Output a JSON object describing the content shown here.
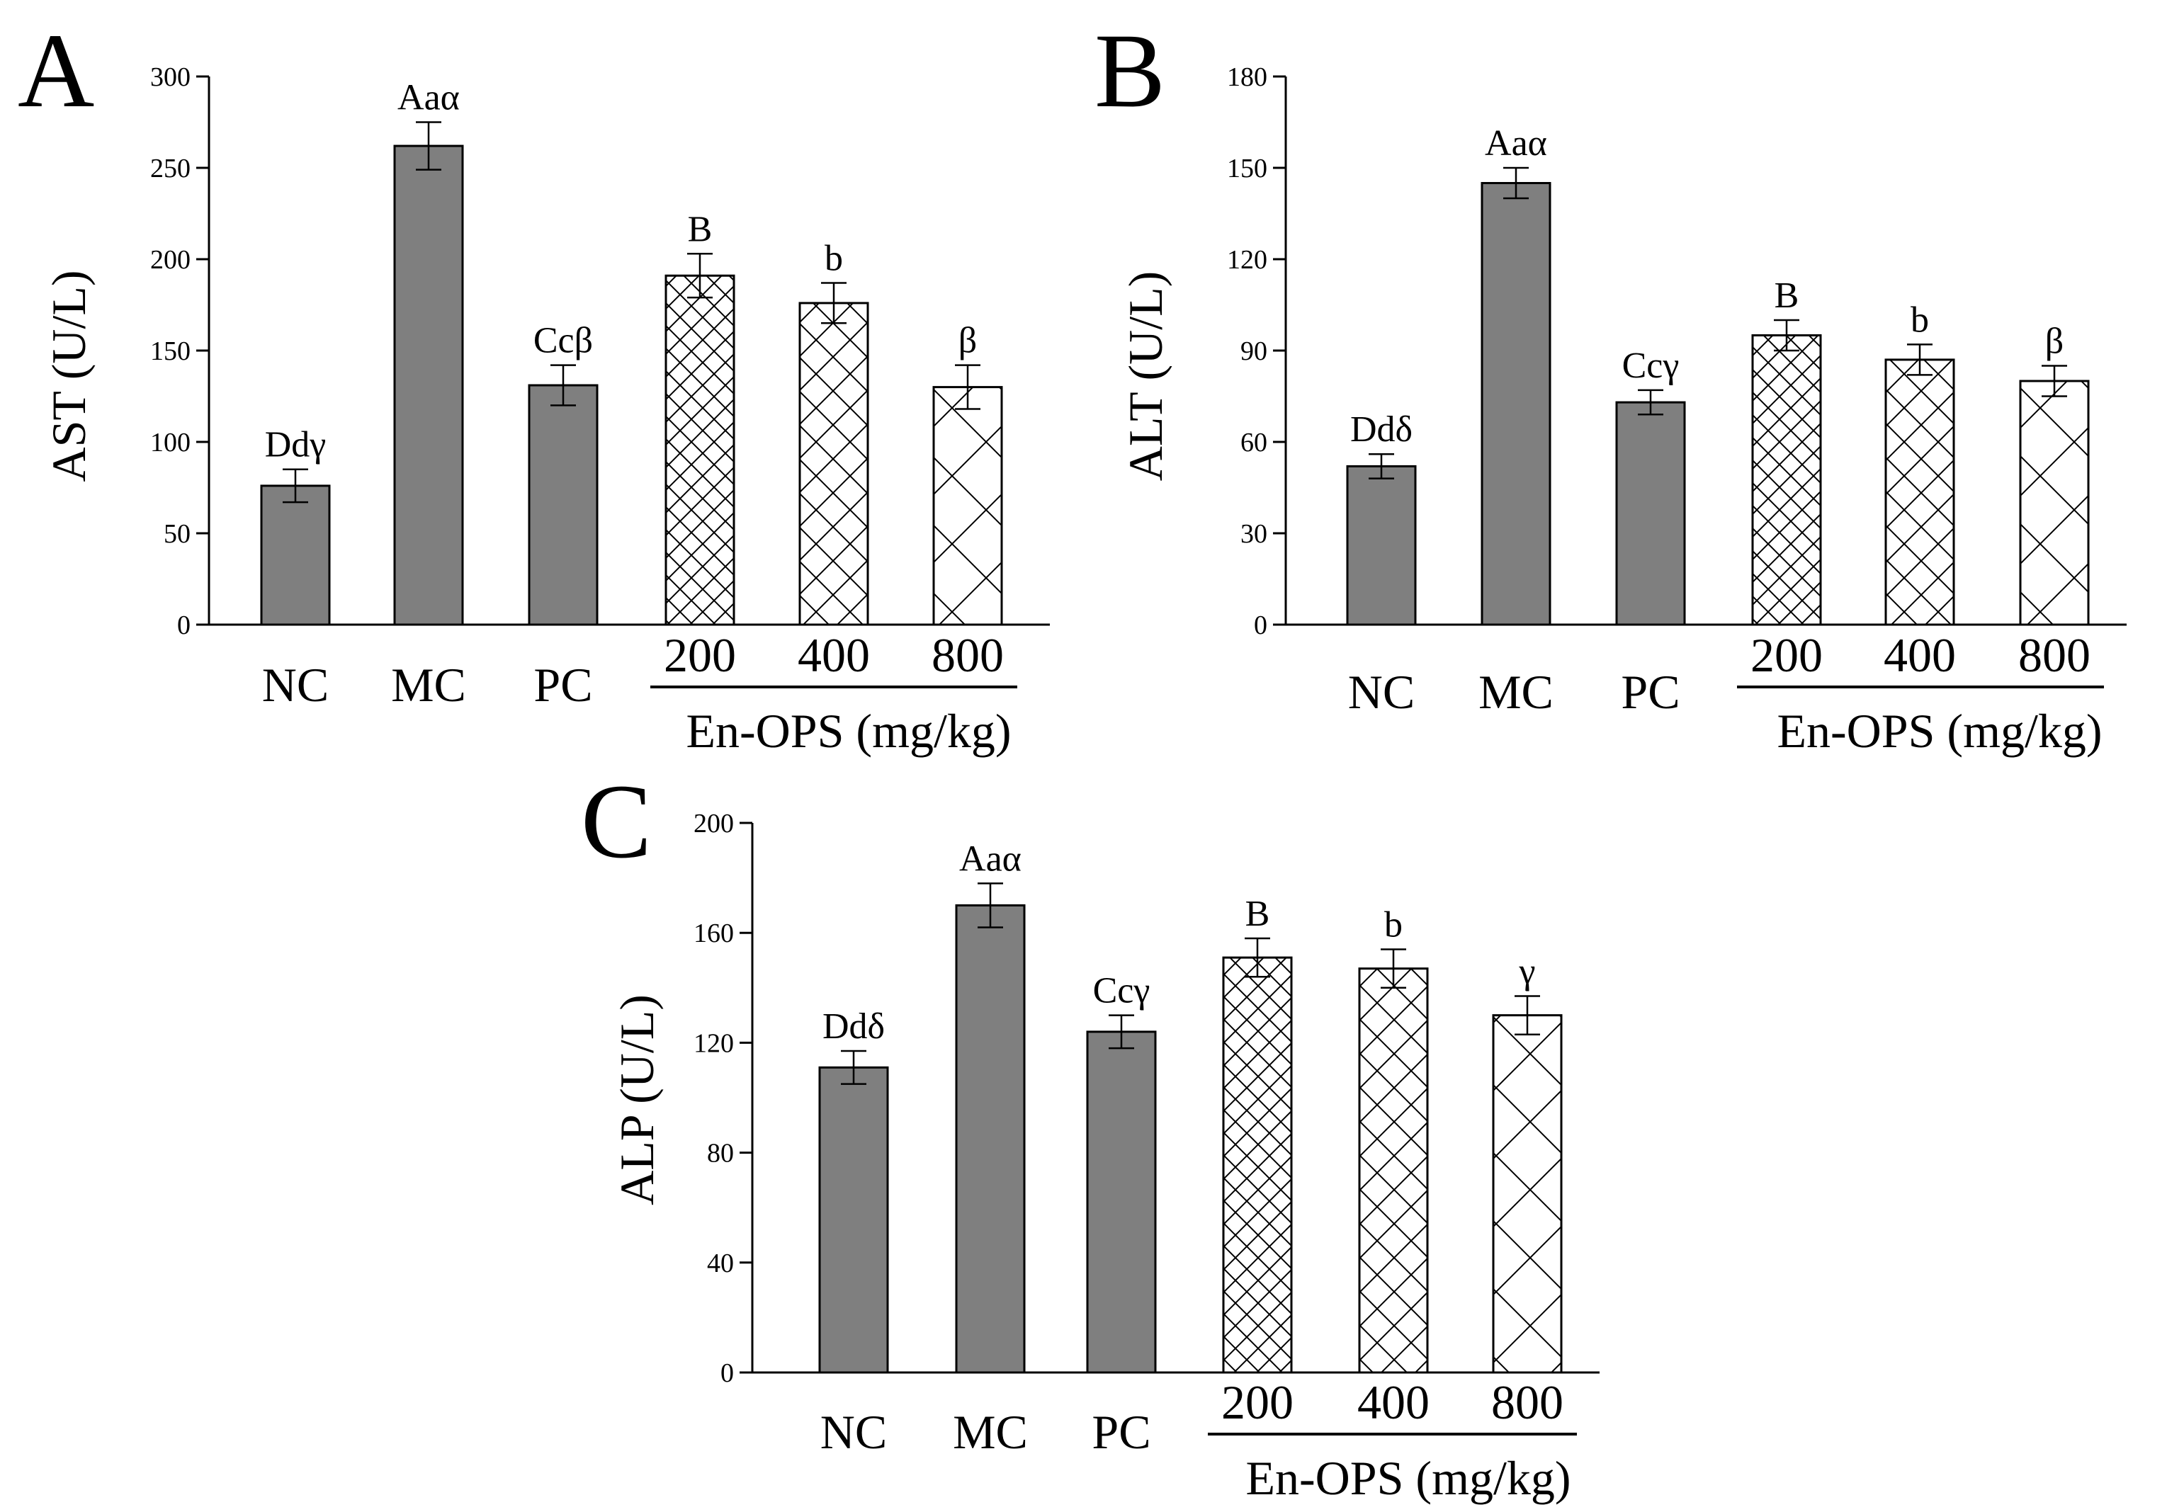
{
  "chart_data": [
    {
      "type": "bar",
      "panel_label": "A",
      "ylabel": "AST (U/L)",
      "ylim": [
        0,
        300
      ],
      "yticks": [
        0,
        50,
        100,
        150,
        200,
        250,
        300
      ],
      "categories": [
        "NC",
        "MC",
        "PC",
        "200",
        "400",
        "800"
      ],
      "values": [
        76,
        262,
        131,
        191,
        176,
        130
      ],
      "errors": [
        9,
        13,
        11,
        12,
        11,
        12
      ],
      "significance": [
        "Ddγ",
        "Aaα",
        "Ccβ",
        "B",
        "b",
        "β"
      ],
      "fill": [
        "solid",
        "solid",
        "solid",
        "crosshatch-dense",
        "crosshatch-medium",
        "crosshatch-sparse"
      ],
      "group_label": "En-OPS (mg/kg)",
      "group_categories": [
        "200",
        "400",
        "800"
      ]
    },
    {
      "type": "bar",
      "panel_label": "B",
      "ylabel": "ALT (U/L)",
      "ylim": [
        0,
        180
      ],
      "yticks": [
        0,
        30,
        60,
        90,
        120,
        150,
        180
      ],
      "categories": [
        "NC",
        "MC",
        "PC",
        "200",
        "400",
        "800"
      ],
      "values": [
        52,
        145,
        73,
        95,
        87,
        80
      ],
      "errors": [
        4,
        5,
        4,
        5,
        5,
        5
      ],
      "significance": [
        "Ddδ",
        "Aaα",
        "Ccγ",
        "B",
        "b",
        "β"
      ],
      "fill": [
        "solid",
        "solid",
        "solid",
        "crosshatch-dense",
        "crosshatch-medium",
        "crosshatch-sparse"
      ],
      "group_label": "En-OPS (mg/kg)",
      "group_categories": [
        "200",
        "400",
        "800"
      ]
    },
    {
      "type": "bar",
      "panel_label": "C",
      "ylabel": "ALP (U/L)",
      "ylim": [
        0,
        200
      ],
      "yticks": [
        0,
        40,
        80,
        120,
        160,
        200
      ],
      "categories": [
        "NC",
        "MC",
        "PC",
        "200",
        "400",
        "800"
      ],
      "values": [
        111,
        170,
        124,
        151,
        147,
        130
      ],
      "errors": [
        6,
        8,
        6,
        7,
        7,
        7
      ],
      "significance": [
        "Ddδ",
        "Aaα",
        "Ccγ",
        "B",
        "b",
        "γ"
      ],
      "fill": [
        "solid",
        "solid",
        "solid",
        "crosshatch-dense",
        "crosshatch-medium",
        "crosshatch-sparse"
      ],
      "group_label": "En-OPS (mg/kg)",
      "group_categories": [
        "200",
        "400",
        "800"
      ]
    }
  ],
  "colors": {
    "solid_bar": "#7f7f7f",
    "hatch_bar_bg": "#ffffff",
    "stroke": "#000000"
  }
}
